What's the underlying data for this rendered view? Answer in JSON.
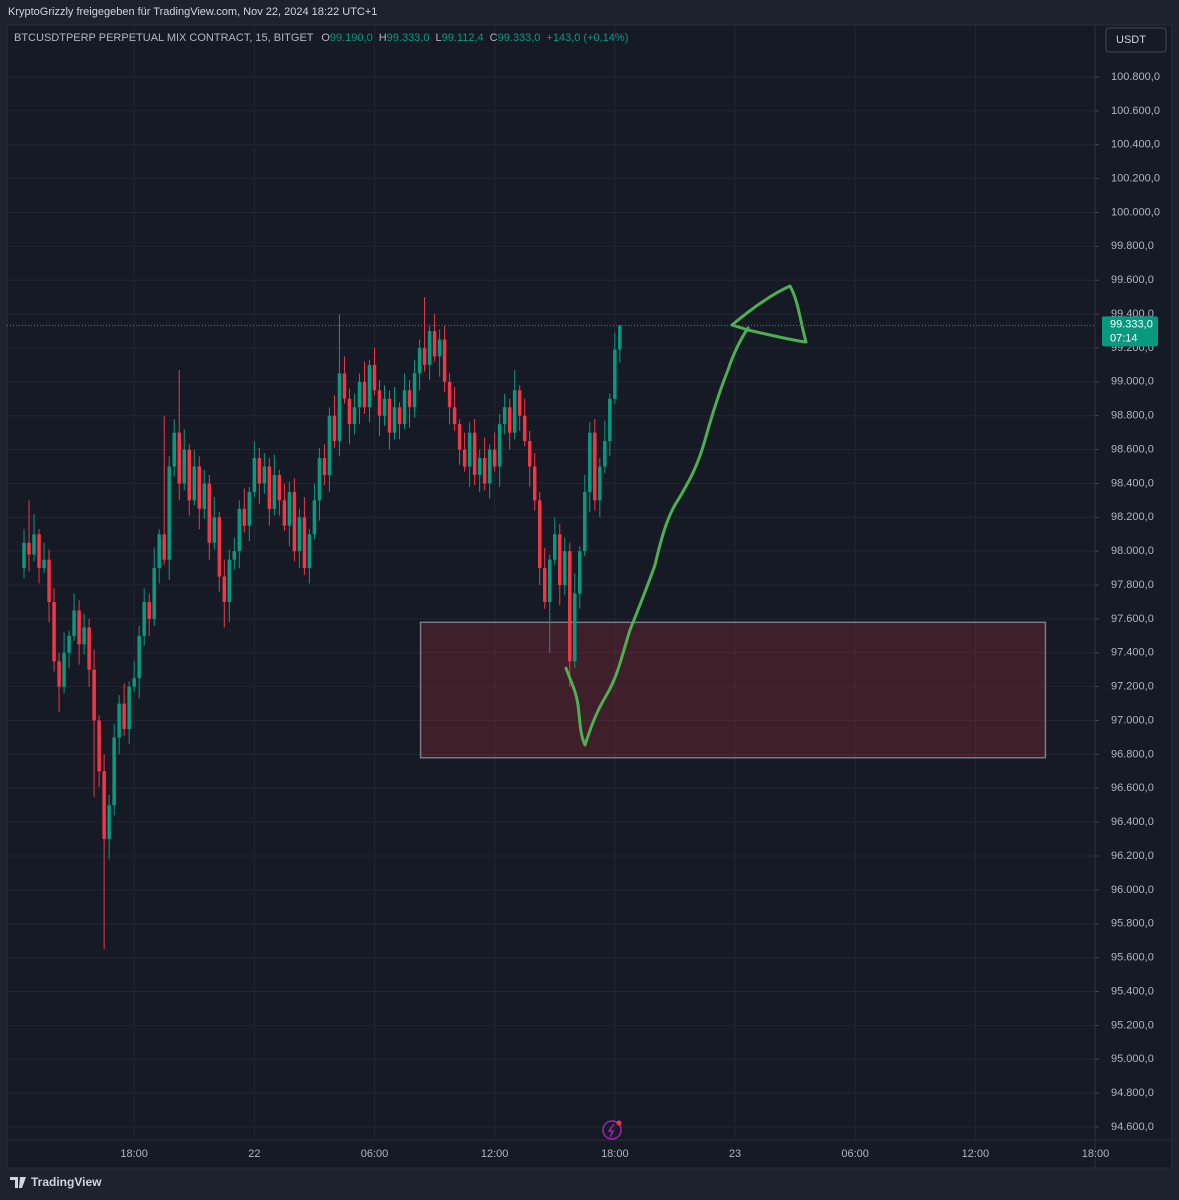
{
  "header": "KryptoGrizzly freigegeben für TradingView.com, Nov 22, 2024 18:22 UTC+1",
  "footer": "TradingView",
  "chart_data": {
    "type": "candlestick",
    "legend": {
      "symbol": "BTCUSDTPERP PERPETUAL MIX CONTRACT, 15, BITGET",
      "ohlc": [
        {
          "key": "O",
          "value": "99.190,0"
        },
        {
          "key": "H",
          "value": "99.333,0"
        },
        {
          "key": "L",
          "value": "99.112,4"
        },
        {
          "key": "C",
          "value": "99.333,0"
        }
      ],
      "change": "+143,0 (+0,14%)"
    },
    "currency": "USDT",
    "last_price_label": "99.333,0",
    "countdown": "07:14",
    "up_color": "#089981",
    "down_color": "#f23645",
    "grid": true,
    "open": [
      97900,
      98050,
      97980,
      98100,
      97900,
      97950,
      97700,
      97350,
      97200,
      97400,
      97500,
      97650,
      97450,
      97550,
      97300,
      97000,
      96700,
      96300,
      96500,
      96900,
      97100,
      96950,
      97200,
      97250,
      97500,
      97700,
      97600,
      97900,
      98100,
      97950,
      98500,
      98700,
      98400,
      98600,
      98300,
      98500,
      98250,
      98400,
      98050,
      98200,
      97850,
      97700,
      97950,
      98000,
      98250,
      98150,
      98350,
      98550,
      98400,
      98500,
      98250,
      98450,
      98300,
      98150,
      98350,
      98000,
      98200,
      97900,
      98100,
      98300,
      98550,
      98450,
      98800,
      98650,
      99050,
      98900,
      98750,
      98850,
      99000,
      98850,
      99100,
      98950,
      98800,
      98900,
      98700,
      98850,
      98750,
      98950,
      98850,
      99050,
      99200,
      99100,
      99300,
      99150,
      99250,
      99000,
      98850,
      98750,
      98600,
      98500,
      98700,
      98450,
      98550,
      98400,
      98600,
      98500,
      98750,
      98850,
      98700,
      98950,
      98800,
      98650,
      98500,
      98300,
      97900,
      97700,
      97950,
      98100,
      97800,
      98000,
      97350,
      97750,
      98000,
      98350,
      98700,
      98300,
      98500,
      98650,
      98900,
      99190
    ],
    "high": [
      98130,
      98300,
      98220,
      98130,
      98050,
      98010,
      97780,
      97400,
      97520,
      97530,
      97750,
      97710,
      97630,
      97600,
      97420,
      97030,
      96800,
      96560,
      96980,
      97150,
      97220,
      97230,
      97350,
      97560,
      97780,
      97750,
      98020,
      98130,
      98800,
      98560,
      98780,
      99070,
      98720,
      98630,
      98600,
      98560,
      98480,
      98450,
      98320,
      98230,
      97950,
      98010,
      98080,
      98300,
      98370,
      98380,
      98650,
      98610,
      98580,
      98550,
      98570,
      98480,
      98400,
      98410,
      98430,
      98250,
      98320,
      98130,
      98400,
      98610,
      98630,
      98850,
      98920,
      99400,
      99150,
      98960,
      98930,
      99050,
      99120,
      99130,
      99200,
      99010,
      98980,
      98950,
      98970,
      98880,
      99050,
      99010,
      99130,
      99250,
      99500,
      99330,
      99400,
      99310,
      99330,
      99050,
      98970,
      98780,
      98700,
      98760,
      98780,
      98600,
      98670,
      98630,
      98700,
      98810,
      98930,
      98900,
      99070,
      98980,
      98900,
      98710,
      98580,
      98350,
      98020,
      97980,
      98200,
      98160,
      98080,
      98050,
      97870,
      98030,
      98450,
      98760,
      98780,
      98550,
      98770,
      98930,
      99290,
      99333
    ],
    "low": [
      97840,
      97880,
      97940,
      97810,
      97870,
      97580,
      97290,
      97050,
      97160,
      97310,
      97470,
      97330,
      97390,
      97200,
      96550,
      96610,
      95650,
      96180,
      96440,
      96800,
      96910,
      96860,
      97170,
      97130,
      97440,
      97500,
      97560,
      97810,
      97920,
      97830,
      98440,
      98300,
      98360,
      98210,
      98270,
      98130,
      98190,
      97950,
      98010,
      97760,
      97550,
      97580,
      97890,
      97900,
      98110,
      98060,
      98320,
      98280,
      98340,
      98150,
      98210,
      98210,
      98120,
      98030,
      97940,
      97900,
      97860,
      97810,
      98070,
      98180,
      98390,
      98350,
      98610,
      98560,
      98870,
      98630,
      98690,
      98750,
      98810,
      98760,
      98920,
      98680,
      98740,
      98600,
      98660,
      98660,
      98720,
      98730,
      98790,
      98950,
      99060,
      99010,
      99120,
      99030,
      98940,
      98750,
      98710,
      98510,
      98470,
      98380,
      98390,
      98350,
      98360,
      98310,
      98470,
      98380,
      98690,
      98600,
      98660,
      98710,
      98620,
      98380,
      98240,
      97800,
      97660,
      97400,
      97920,
      97680,
      97740,
      97200,
      97310,
      97660,
      97970,
      98230,
      98240,
      98200,
      98460,
      98560,
      98870,
      99112.4
    ],
    "close": [
      98050,
      97980,
      98100,
      97900,
      97950,
      97700,
      97350,
      97200,
      97400,
      97500,
      97650,
      97450,
      97550,
      97300,
      97000,
      96700,
      96300,
      96500,
      96900,
      97100,
      96950,
      97200,
      97250,
      97500,
      97700,
      97600,
      97900,
      98100,
      97950,
      98500,
      98700,
      98400,
      98600,
      98300,
      98500,
      98250,
      98400,
      98050,
      98200,
      97850,
      97700,
      97950,
      98000,
      98250,
      98150,
      98350,
      98550,
      98400,
      98500,
      98250,
      98450,
      98300,
      98150,
      98350,
      98000,
      98200,
      97900,
      98100,
      98300,
      98550,
      98450,
      98800,
      98650,
      99050,
      98900,
      98750,
      98850,
      99000,
      98850,
      99100,
      98950,
      98800,
      98900,
      98700,
      98850,
      98750,
      98950,
      98850,
      99050,
      99200,
      99100,
      99300,
      99150,
      99250,
      99000,
      98850,
      98750,
      98600,
      98500,
      98700,
      98450,
      98550,
      98400,
      98600,
      98500,
      98750,
      98850,
      98700,
      98950,
      98800,
      98650,
      98500,
      98300,
      97900,
      97700,
      97950,
      98100,
      97800,
      98000,
      97350,
      97750,
      98000,
      98350,
      98700,
      98300,
      98500,
      98650,
      98900,
      99190,
      99333
    ],
    "zone": {
      "low": 96780,
      "high": 97580,
      "start": 79.2,
      "end": 204
    },
    "xlim": [
      -2.4,
      214.9
    ],
    "xticks": [
      {
        "value": 22,
        "label": "18:00"
      },
      {
        "value": 46,
        "label": "22"
      },
      {
        "value": 70,
        "label": "06:00"
      },
      {
        "value": 94,
        "label": "12:00"
      },
      {
        "value": 118,
        "label": "18:00"
      },
      {
        "value": 142,
        "label": "23"
      },
      {
        "value": 166,
        "label": "06:00"
      },
      {
        "value": 190,
        "label": "12:00"
      },
      {
        "value": 214,
        "label": "18:00"
      }
    ],
    "ylim": [
      94523,
      101107
    ],
    "yticks": [
      {
        "value": 94600,
        "label": "94.600,0"
      },
      {
        "value": 94800,
        "label": "94.800,0"
      },
      {
        "value": 95000,
        "label": "95.000,0"
      },
      {
        "value": 95200,
        "label": "95.200,0"
      },
      {
        "value": 95400,
        "label": "95.400,0"
      },
      {
        "value": 95600,
        "label": "95.600,0"
      },
      {
        "value": 95800,
        "label": "95.800,0"
      },
      {
        "value": 96000,
        "label": "96.000,0"
      },
      {
        "value": 96200,
        "label": "96.200,0"
      },
      {
        "value": 96400,
        "label": "96.400,0"
      },
      {
        "value": 96600,
        "label": "96.600,0"
      },
      {
        "value": 96800,
        "label": "96.800,0"
      },
      {
        "value": 97000,
        "label": "97.000,0"
      },
      {
        "value": 97200,
        "label": "97.200,0"
      },
      {
        "value": 97400,
        "label": "97.400,0"
      },
      {
        "value": 97600,
        "label": "97.600,0"
      },
      {
        "value": 97800,
        "label": "97.800,0"
      },
      {
        "value": 98000,
        "label": "98.000,0"
      },
      {
        "value": 98200,
        "label": "98.200,0"
      },
      {
        "value": 98400,
        "label": "98.400,0"
      },
      {
        "value": 98600,
        "label": "98.600,0"
      },
      {
        "value": 98800,
        "label": "98.800,0"
      },
      {
        "value": 99000,
        "label": "99.000,0"
      },
      {
        "value": 99200,
        "label": "99.200,0"
      },
      {
        "value": 99400,
        "label": "99.400,0"
      },
      {
        "value": 99600,
        "label": "99.600,0"
      },
      {
        "value": 99800,
        "label": "99.800,0"
      },
      {
        "value": 100000,
        "label": "100.000,0"
      },
      {
        "value": 100200,
        "label": "100.200,0"
      },
      {
        "value": 100400,
        "label": "100.400,0"
      },
      {
        "value": 100600,
        "label": "100.600,0"
      },
      {
        "value": 100800,
        "label": "100.800,0"
      }
    ]
  }
}
